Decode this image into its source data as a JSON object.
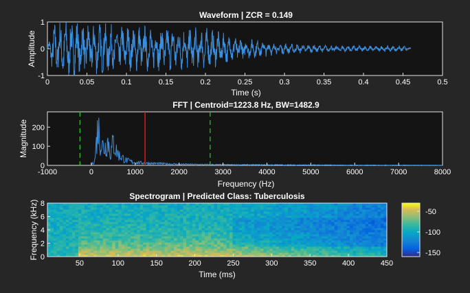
{
  "colors": {
    "figure_bg": "#262626",
    "axes_bg": "#141414",
    "signal": "#3a8fe0",
    "centroid_line": "#e01c1c",
    "bandwidth_lines": "#22c022",
    "text": "#ffffff"
  },
  "chart_data": [
    {
      "type": "line",
      "title": "Waveform | ZCR = 0.149",
      "xlabel": "Time (s)",
      "ylabel": "Amplitude",
      "xlim": [
        0,
        0.5
      ],
      "ylim": [
        -1,
        1
      ],
      "xticks": [
        "0",
        "0.05",
        "0.1",
        "0.15",
        "0.2",
        "0.25",
        "0.3",
        "0.35",
        "0.4",
        "0.45",
        "0.5"
      ],
      "yticks": [
        "-1",
        "0",
        "1"
      ],
      "signal_end_s": 0.46,
      "envelope": [
        {
          "t": 0.0,
          "a": 0.1
        },
        {
          "t": 0.008,
          "a": 0.85
        },
        {
          "t": 0.02,
          "a": 1.0
        },
        {
          "t": 0.05,
          "a": 0.9
        },
        {
          "t": 0.1,
          "a": 0.8
        },
        {
          "t": 0.15,
          "a": 0.75
        },
        {
          "t": 0.2,
          "a": 0.7
        },
        {
          "t": 0.25,
          "a": 0.35
        },
        {
          "t": 0.3,
          "a": 0.18
        },
        {
          "t": 0.35,
          "a": 0.12
        },
        {
          "t": 0.4,
          "a": 0.1
        },
        {
          "t": 0.45,
          "a": 0.1
        },
        {
          "t": 0.46,
          "a": 0.02
        }
      ],
      "grid": false
    },
    {
      "type": "line",
      "title": "FFT | Centroid=1223.8 Hz, BW=1482.9",
      "xlabel": "Frequency (Hz)",
      "ylabel": "Magnitude",
      "xlim": [
        -1000,
        8000
      ],
      "ylim": [
        0,
        280
      ],
      "xticks": [
        "-1000",
        "0",
        "1000",
        "2000",
        "3000",
        "4000",
        "5000",
        "6000",
        "7000",
        "8000"
      ],
      "yticks": [
        "0",
        "100",
        "200"
      ],
      "centroid_hz": 1223.8,
      "bandwidth_lines_hz": [
        -259.1,
        2706.7
      ],
      "spectrum_envelope": [
        {
          "f": 0,
          "m": 2
        },
        {
          "f": 80,
          "m": 40
        },
        {
          "f": 120,
          "m": 180
        },
        {
          "f": 150,
          "m": 280
        },
        {
          "f": 220,
          "m": 160
        },
        {
          "f": 300,
          "m": 120
        },
        {
          "f": 380,
          "m": 180
        },
        {
          "f": 440,
          "m": 80
        },
        {
          "f": 500,
          "m": 170
        },
        {
          "f": 560,
          "m": 110
        },
        {
          "f": 640,
          "m": 70
        },
        {
          "f": 800,
          "m": 35
        },
        {
          "f": 1000,
          "m": 20
        },
        {
          "f": 1300,
          "m": 15
        },
        {
          "f": 1600,
          "m": 12
        },
        {
          "f": 2000,
          "m": 8
        },
        {
          "f": 3000,
          "m": 5
        },
        {
          "f": 4000,
          "m": 4
        },
        {
          "f": 5000,
          "m": 3
        },
        {
          "f": 6000,
          "m": 2
        },
        {
          "f": 7250,
          "m": 2
        },
        {
          "f": 8000,
          "m": 1
        }
      ],
      "grid": false
    },
    {
      "type": "heatmap",
      "title": "Spectrogram | Predicted Class: Tuberculosis",
      "xlabel": "Time (ms)",
      "ylabel": "Frequency (kHz)",
      "xlim": [
        8,
        450
      ],
      "ylim": [
        0,
        8
      ],
      "xticks": [
        "50",
        "100",
        "150",
        "200",
        "250",
        "300",
        "350",
        "400",
        "450"
      ],
      "yticks": [
        "0",
        "2",
        "4",
        "6",
        "8"
      ],
      "colorbar": {
        "range": [
          -160,
          -30
        ],
        "ticks": [
          "-50",
          "-100",
          "-150"
        ]
      },
      "colormap": "parula"
    }
  ]
}
